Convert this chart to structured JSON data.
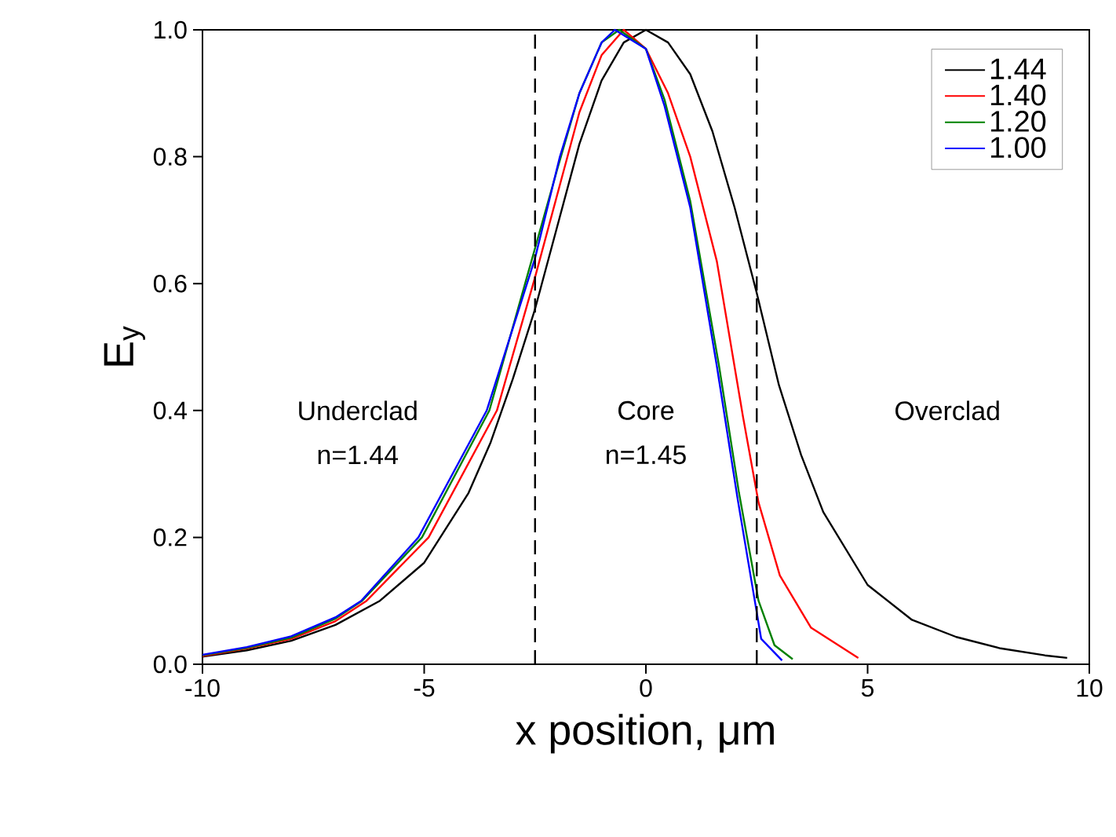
{
  "chart_data": {
    "type": "line",
    "xlabel": "x position, μm",
    "ylabel": "E$_{y}$",
    "xlim": [
      -10,
      10
    ],
    "ylim": [
      0,
      1
    ],
    "xticks": [
      -10,
      -5,
      0,
      5,
      10
    ],
    "yticks": [
      {
        "value": 0,
        "label": "0.0"
      },
      {
        "value": 0.2,
        "label": "0.2"
      },
      {
        "value": 0.4,
        "label": "0.4"
      },
      {
        "value": 0.6,
        "label": "0.6"
      },
      {
        "value": 0.8,
        "label": "0.8"
      },
      {
        "value": 1,
        "label": "1.0"
      }
    ],
    "grid": false,
    "legend": "top right",
    "marker": "none",
    "line_style": "solid",
    "series": [
      {
        "name": "1.44",
        "color": "#000000",
        "x": [
          -10,
          -9,
          -8,
          -7,
          -6,
          -5,
          -4,
          -3.5,
          -3,
          -2.5,
          -2,
          -1.5,
          -1,
          -0.5,
          0,
          0.5,
          1,
          1.5,
          2,
          2.5,
          3,
          3.5,
          4,
          5,
          6,
          7,
          8,
          9,
          9.5
        ],
        "values": [
          0.012,
          0.022,
          0.037,
          0.062,
          0.1,
          0.16,
          0.27,
          0.35,
          0.45,
          0.56,
          0.69,
          0.82,
          0.92,
          0.98,
          1.0,
          0.98,
          0.93,
          0.84,
          0.72,
          0.585,
          0.44,
          0.33,
          0.24,
          0.125,
          0.07,
          0.043,
          0.025,
          0.014,
          0.01
        ]
      },
      {
        "name": "1.40",
        "color": "#ff0000",
        "x": [
          -10,
          -9,
          -8,
          -7,
          -6.3,
          -4.9,
          -3.36,
          -2.5,
          -2,
          -1.5,
          -1,
          -0.5,
          0,
          0.5,
          1,
          1.6,
          2.19,
          2.54,
          3.02,
          3.72,
          4.79
        ],
        "values": [
          0.013,
          0.025,
          0.04,
          0.068,
          0.1,
          0.2,
          0.4,
          0.61,
          0.74,
          0.87,
          0.96,
          1.0,
          0.97,
          0.9,
          0.8,
          0.635,
          0.39,
          0.255,
          0.14,
          0.058,
          0.01
        ]
      },
      {
        "name": "1.20",
        "color": "#008000",
        "x": [
          -10,
          -9,
          -8,
          -7,
          -6.4,
          -5.05,
          -3.53,
          -2,
          -1.5,
          -1,
          -0.6,
          0,
          0.42,
          1,
          1.65,
          2.1,
          2.54,
          2.9,
          3.31
        ],
        "values": [
          0.014,
          0.026,
          0.042,
          0.072,
          0.1,
          0.2,
          0.4,
          0.78,
          0.9,
          0.98,
          1.0,
          0.97,
          0.89,
          0.73,
          0.47,
          0.27,
          0.1,
          0.03,
          0.008
        ]
      },
      {
        "name": "1.00",
        "color": "#0000ff",
        "x": [
          -10,
          -9,
          -8,
          -7,
          -6.42,
          -5.13,
          -3.59,
          -2.5,
          -1.94,
          -1.5,
          -1,
          -0.7,
          0,
          0.42,
          1,
          1.6,
          2.07,
          2.42,
          2.6,
          3.07
        ],
        "values": [
          0.015,
          0.027,
          0.044,
          0.074,
          0.1,
          0.2,
          0.4,
          0.64,
          0.8,
          0.9,
          0.98,
          1.0,
          0.97,
          0.88,
          0.72,
          0.47,
          0.26,
          0.115,
          0.04,
          0.006
        ]
      }
    ],
    "ref_lines": [
      {
        "axis": "x",
        "value": -2.5,
        "color": "#000000",
        "line_style": "dashed"
      },
      {
        "axis": "x",
        "value": 2.5,
        "color": "#000000",
        "line_style": "dashed"
      }
    ],
    "annotations": [
      "Underclad",
      "n=1.44",
      "Core",
      "n=1.45",
      "Overclad"
    ]
  }
}
